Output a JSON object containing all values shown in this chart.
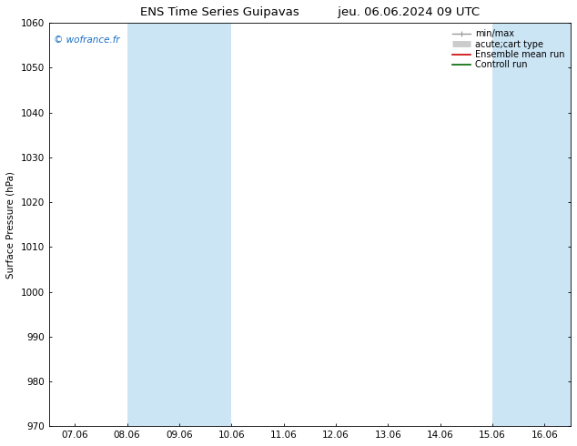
{
  "title_left": "ENS Time Series Guipavas",
  "title_right": "jeu. 06.06.2024 09 UTC",
  "ylabel": "Surface Pressure (hPa)",
  "ylim": [
    970,
    1060
  ],
  "yticks": [
    970,
    980,
    990,
    1000,
    1010,
    1020,
    1030,
    1040,
    1050,
    1060
  ],
  "xtick_labels": [
    "07.06",
    "08.06",
    "09.06",
    "10.06",
    "11.06",
    "12.06",
    "13.06",
    "14.06",
    "15.06",
    "16.06"
  ],
  "xtick_positions": [
    0,
    1,
    2,
    3,
    4,
    5,
    6,
    7,
    8,
    9
  ],
  "xlim": [
    -0.5,
    9.5
  ],
  "watermark": "© wofrance.fr",
  "watermark_color": "#1a6fc4",
  "bg_color": "#ffffff",
  "plot_bg_color": "#ffffff",
  "shaded_regions": [
    {
      "x_start": 1,
      "x_end": 3,
      "color": "#cce5f5"
    },
    {
      "x_start": 8,
      "x_end": 9.5,
      "color": "#cce5f5"
    }
  ],
  "legend_entries": [
    {
      "label": "min/max",
      "color": "#999999",
      "lw": 1.0
    },
    {
      "label": "acute;cart type",
      "color": "#cccccc",
      "lw": 5
    },
    {
      "label": "Ensemble mean run",
      "color": "#cc0000",
      "lw": 1.2
    },
    {
      "label": "Controll run",
      "color": "#006600",
      "lw": 1.2
    }
  ],
  "font_size": 7.5,
  "title_font_size": 9.5,
  "tick_font_size": 7.5
}
